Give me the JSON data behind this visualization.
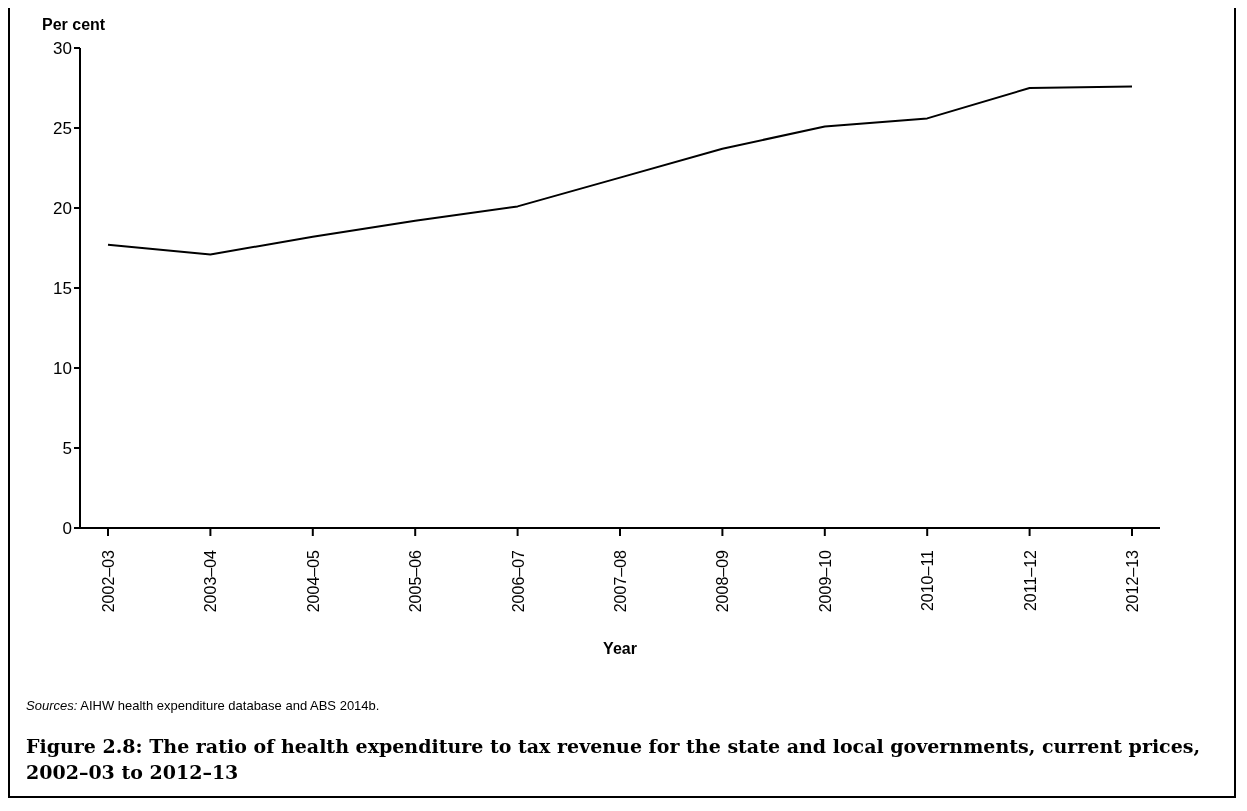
{
  "chart_data": {
    "type": "line",
    "title": "Figure 2.8: The ratio of health expenditure to tax revenue for the state and local governments, current prices, 2002–03 to 2012–13",
    "xlabel": "Year",
    "ylabel": "Per cent",
    "categories": [
      "2002–03",
      "2003–04",
      "2004–05",
      "2005–06",
      "2006–07",
      "2007–08",
      "2008–09",
      "2009–10",
      "2010–11",
      "2011–12",
      "2012–13"
    ],
    "series": [
      {
        "color": "#000000",
        "values": [
          17.7,
          17.1,
          18.2,
          19.2,
          20.1,
          21.9,
          23.7,
          25.1,
          25.6,
          27.5,
          27.6
        ]
      }
    ],
    "ylim": [
      0,
      30
    ],
    "yticks": [
      0,
      5,
      10,
      15,
      20,
      25,
      30
    ],
    "grid": false,
    "legend": false,
    "marker": "none",
    "line_style": "solid",
    "annotations": [
      "Sources: AIHW health expenditure database and ABS 2014b."
    ]
  }
}
